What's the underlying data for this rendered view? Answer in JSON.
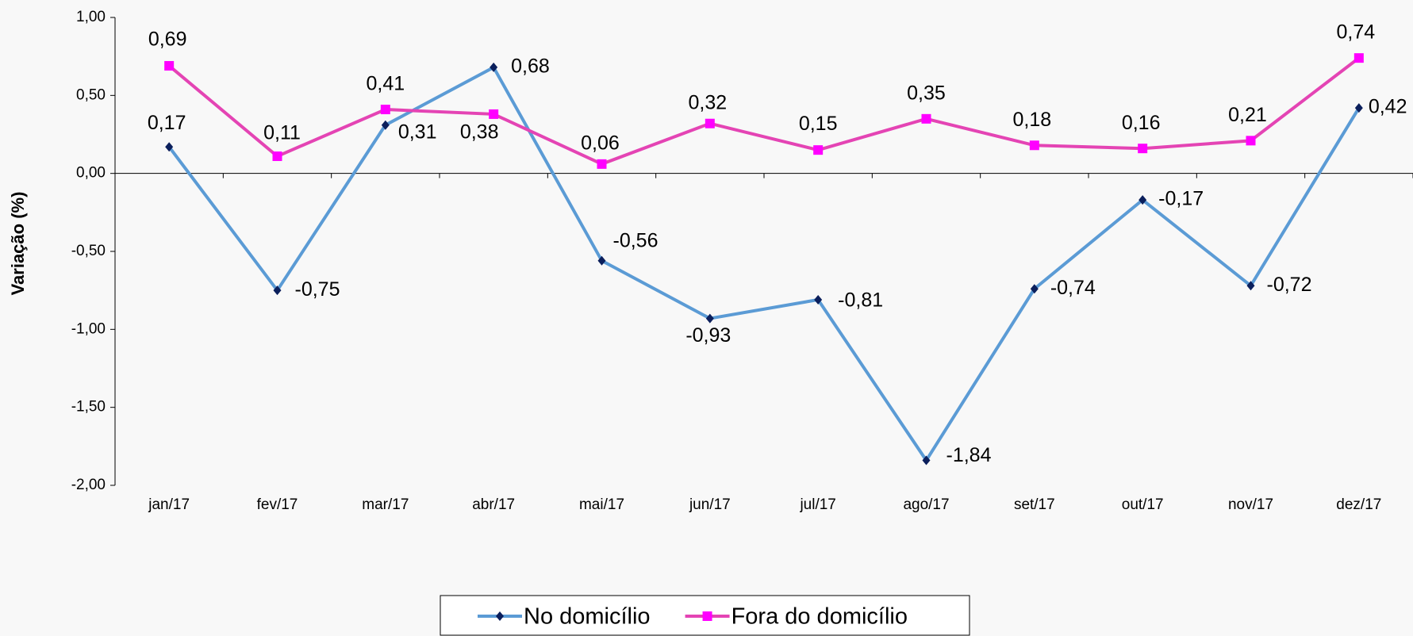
{
  "chart_data": {
    "type": "line",
    "y_label": "Variação (%)",
    "categories": [
      "jan/17",
      "fev/17",
      "mar/17",
      "abr/17",
      "mai/17",
      "jun/17",
      "jul/17",
      "ago/17",
      "set/17",
      "out/17",
      "nov/17",
      "dez/17"
    ],
    "series": [
      {
        "name": "No domicílio",
        "color": "#5b9bd5",
        "marker_color": "#0b1f5c",
        "marker": "diamond",
        "values": [
          0.17,
          -0.75,
          0.31,
          0.68,
          -0.56,
          -0.93,
          -0.81,
          -1.84,
          -0.74,
          -0.17,
          -0.72,
          0.42
        ],
        "value_labels": [
          "0,17",
          "-0,75",
          "0,31",
          "0,68",
          "-0,56",
          "-0,93",
          "-0,81",
          "-1,84",
          "-0,74",
          "-0,17",
          "-0,72",
          "0,42"
        ]
      },
      {
        "name": "Fora do domicílio",
        "color": "#e444b4",
        "marker_color": "#ff00ff",
        "marker": "square",
        "values": [
          0.69,
          0.11,
          0.41,
          0.38,
          0.06,
          0.32,
          0.15,
          0.35,
          0.18,
          0.16,
          0.21,
          0.74
        ],
        "value_labels": [
          "0,69",
          "0,11",
          "0,41",
          "0,38",
          "0,06",
          "0,32",
          "0,15",
          "0,35",
          "0,18",
          "0,16",
          "0,21",
          "0,74"
        ]
      }
    ],
    "ylim": [
      -2,
      1
    ],
    "yticks": [
      {
        "value": 1,
        "label": "1,00"
      },
      {
        "value": 0.5,
        "label": "0,50"
      },
      {
        "value": 0,
        "label": "0,00"
      },
      {
        "value": -0.5,
        "label": "-0,50"
      },
      {
        "value": -1,
        "label": "-1,00"
      },
      {
        "value": -1.5,
        "label": "-1,50"
      },
      {
        "value": -2,
        "label": "-2,00"
      }
    ],
    "grid": false,
    "legend": "bottom"
  }
}
